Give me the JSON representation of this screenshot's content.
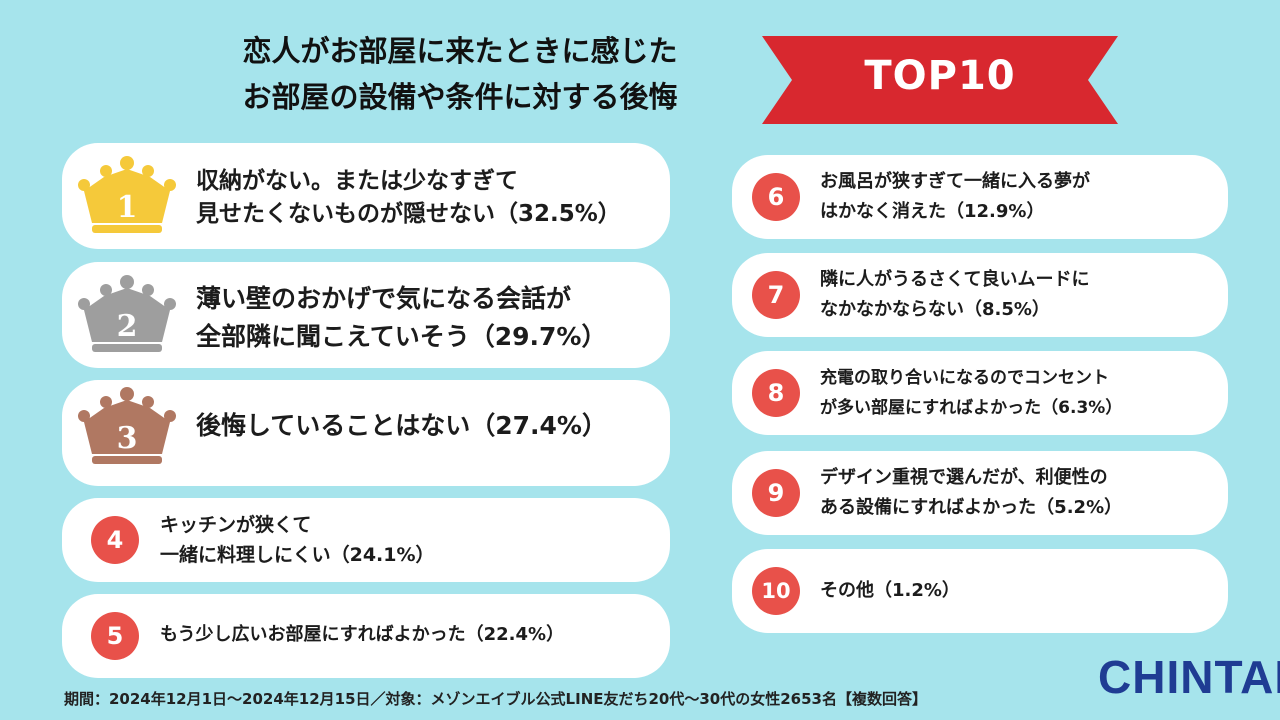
{
  "title": {
    "line1": "恋人がお部屋に来たときに感じた",
    "line2": "お部屋の設備や条件に対する後悔"
  },
  "banner": {
    "label": "TOP10",
    "color": "#d8282f"
  },
  "colors": {
    "background": "#a6e4ec",
    "number_circle": "#e8514a",
    "gold": "#f5c93a",
    "silver": "#9e9e9e",
    "bronze": "#b07862"
  },
  "ranking": [
    {
      "rank": "1",
      "icon": "gold-crown-icon",
      "line1": "収納がない。または少なすぎて",
      "line2": "見せたくないものが隠せない（32.5%）"
    },
    {
      "rank": "2",
      "icon": "silver-crown-icon",
      "line1": "薄い壁のおかげで気になる会話が",
      "line2": "全部隣に聞こえていそう（29.7%）"
    },
    {
      "rank": "3",
      "icon": "bronze-crown-icon",
      "line1": "後悔していることはない（27.4%）",
      "line2": ""
    },
    {
      "rank": "4",
      "line1": "キッチンが狭くて",
      "line2": "一緒に料理しにくい（24.1%）"
    },
    {
      "rank": "5",
      "line1": "もう少し広いお部屋にすればよかった（22.4%）",
      "line2": ""
    },
    {
      "rank": "6",
      "line1": "お風呂が狭すぎて一緒に入る夢が",
      "line2": "はかなく消えた（12.9%）"
    },
    {
      "rank": "7",
      "line1": "隣に人がうるさくて良いムードに",
      "line2": "なかなかならない（8.5%）"
    },
    {
      "rank": "8",
      "line1": "充電の取り合いになるのでコンセント",
      "line2": "が多い部屋にすればよかった（6.3%）"
    },
    {
      "rank": "9",
      "line1": "デザイン重視で選んだが、利便性の",
      "line2": "ある設備にすればよかった（5.2%）"
    },
    {
      "rank": "10",
      "line1": "その他（1.2%）",
      "line2": ""
    }
  ],
  "footer": "期間：2024年12月1日～2024年12月15日／対象：メゾンエイブル公式LINE友だち20代～30代の女性2653名【複数回答】",
  "logo": "CHINTAI"
}
